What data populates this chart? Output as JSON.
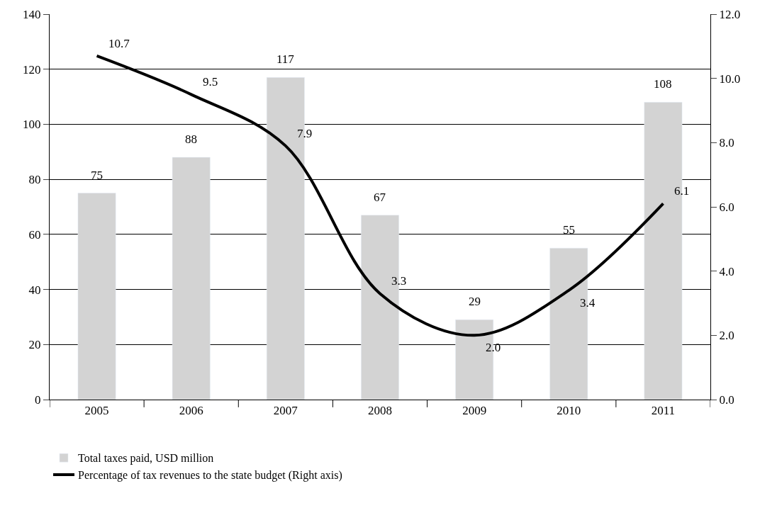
{
  "chart_data": {
    "type": "bar",
    "categories": [
      "2005",
      "2006",
      "2007",
      "2008",
      "2009",
      "2010",
      "2011"
    ],
    "series": [
      {
        "name": "Total taxes paid, USD million",
        "color": "#d3d3d3",
        "values": [
          75,
          88,
          117,
          67,
          29,
          55,
          108
        ]
      },
      {
        "name": "Percentage of tax revenues to the state budget (Right axis)",
        "type": "line",
        "axis": "y2",
        "color": "#000000",
        "values": [
          10.7,
          9.5,
          7.9,
          3.3,
          2.0,
          3.4,
          6.1
        ],
        "value_labels": [
          "10.7",
          "9.5",
          "7.9",
          "3.3",
          "2.0",
          "3.4",
          "6.1"
        ]
      }
    ],
    "ylim": [
      0,
      140
    ],
    "yticks": [
      0,
      20,
      40,
      60,
      80,
      100,
      120,
      140
    ],
    "y2lim": [
      0,
      12
    ],
    "y2ticks": [
      {
        "value": 0,
        "label": "0.0"
      },
      {
        "value": 2,
        "label": "2.0"
      },
      {
        "value": 4,
        "label": "4.0"
      },
      {
        "value": 6,
        "label": "6.0"
      },
      {
        "value": 8,
        "label": "8.0"
      },
      {
        "value": 10,
        "label": "10.0"
      },
      {
        "value": 12,
        "label": "12.0"
      }
    ],
    "grid": "y",
    "legend": "bottom",
    "data_labels": true,
    "marker": "none",
    "line_style": "solid"
  }
}
